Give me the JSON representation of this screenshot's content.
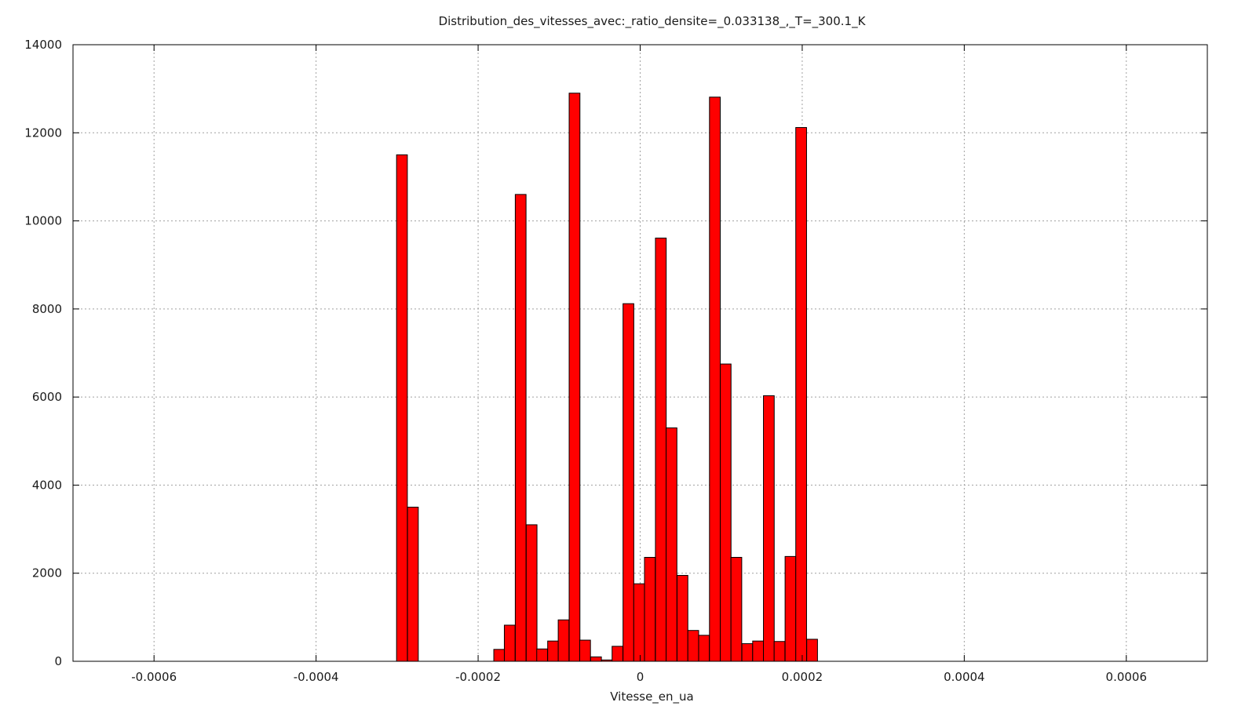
{
  "chart_data": {
    "type": "bar",
    "title": "Distribution_des_vitesses_avec:_ratio_densite=_0.033138_,_T=_300.1_K",
    "xlabel": "Vitesse_en_ua",
    "ylabel": "",
    "xlim": [
      -0.0007,
      0.0007
    ],
    "ylim": [
      0,
      14000
    ],
    "x_ticks": [
      -0.0006,
      -0.0004,
      -0.0002,
      0,
      0.0002,
      0.0004,
      0.0006
    ],
    "x_tick_labels": [
      "-0.0006",
      "-0.0004",
      "-0.0002",
      "0",
      "0.0002",
      "0.0004",
      "0.0006"
    ],
    "y_ticks": [
      0,
      2000,
      4000,
      6000,
      8000,
      10000,
      12000,
      14000
    ],
    "y_tick_labels": [
      "0",
      "2000",
      "4000",
      "6000",
      "8000",
      "10000",
      "12000",
      "14000"
    ],
    "grid": true,
    "bin_width": 1.33e-05,
    "bar_color": "#ff0000",
    "bar_edge_color": "#000000",
    "x": [
      -0.000294,
      -0.0002805,
      -0.000174,
      -0.000161,
      -0.0001475,
      -0.000134,
      -0.000121,
      -0.0001075,
      -9.45e-05,
      -8.1e-05,
      -6.8e-05,
      -5.45e-05,
      -4.1e-05,
      -2.8e-05,
      -1.45e-05,
      -1.3e-06,
      1.2e-05,
      2.55e-05,
      3.87e-05,
      5.22e-05,
      6.55e-05,
      7.88e-05,
      9.22e-05,
      0.0001055,
      0.0001187,
      0.0001322,
      0.0001455,
      0.0001588,
      0.000172,
      0.0001855,
      0.0001987,
      0.0002122
    ],
    "values": [
      11500,
      3500,
      270,
      820,
      10600,
      3100,
      280,
      460,
      940,
      12900,
      480,
      100,
      30,
      340,
      8120,
      1760,
      2360,
      9610,
      5300,
      1950,
      700,
      590,
      12810,
      6750,
      2360,
      400,
      460,
      6030,
      450,
      2380,
      12120,
      500
    ]
  }
}
